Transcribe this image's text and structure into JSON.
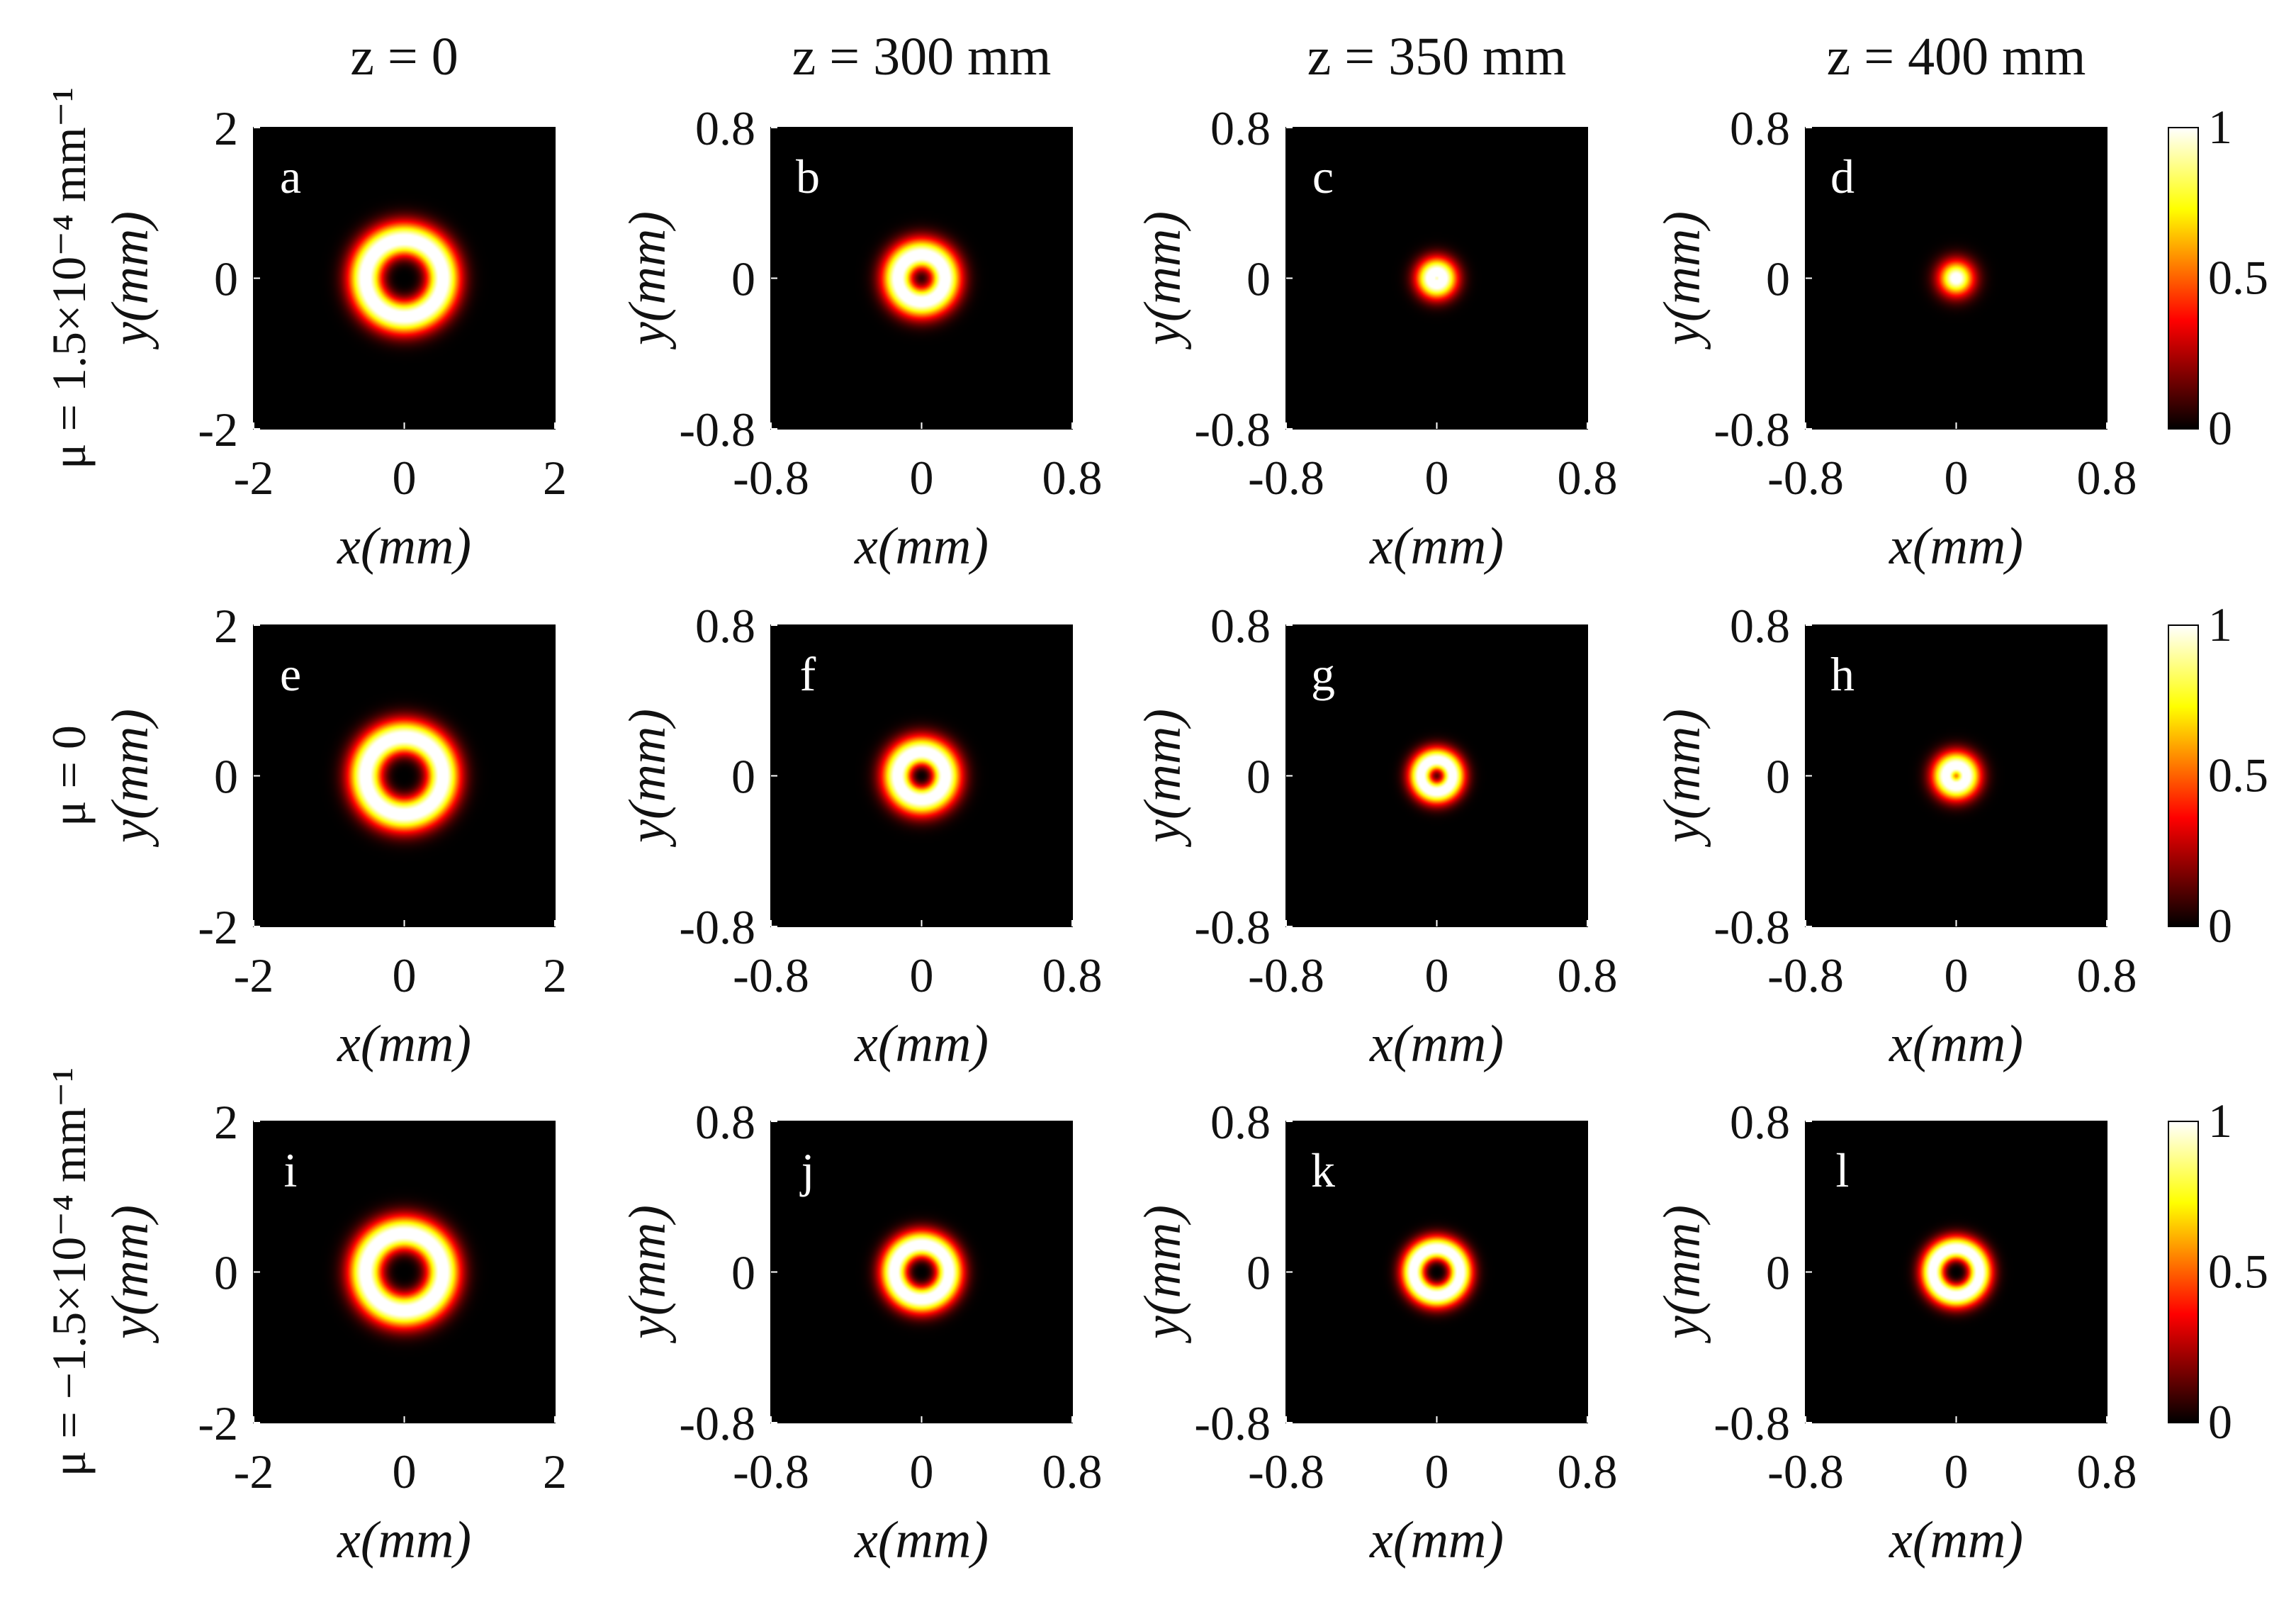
{
  "chart_data": {
    "type": "heatmap",
    "colormap": "hot",
    "columns": [
      {
        "title": "z = 0",
        "xlim": [
          -2,
          2
        ],
        "ylim": [
          -2,
          2
        ],
        "xticks": [
          "-2",
          "0",
          "2"
        ],
        "yticks": [
          "2",
          "0",
          "-2"
        ]
      },
      {
        "title": "z = 300 mm",
        "xlim": [
          -0.8,
          0.8
        ],
        "ylim": [
          -0.8,
          0.8
        ],
        "xticks": [
          "-0.8",
          "0",
          "0.8"
        ],
        "yticks": [
          "0.8",
          "0",
          "-0.8"
        ]
      },
      {
        "title": "z = 350 mm",
        "xlim": [
          -0.8,
          0.8
        ],
        "ylim": [
          -0.8,
          0.8
        ],
        "xticks": [
          "-0.8",
          "0",
          "0.8"
        ],
        "yticks": [
          "0.8",
          "0",
          "-0.8"
        ]
      },
      {
        "title": "z = 400 mm",
        "xlim": [
          -0.8,
          0.8
        ],
        "ylim": [
          -0.8,
          0.8
        ],
        "xticks": [
          "-0.8",
          "0",
          "0.8"
        ],
        "yticks": [
          "0.8",
          "0",
          "-0.8"
        ]
      }
    ],
    "rows": [
      {
        "label": "μ = 1.5×10⁻⁴ mm⁻¹"
      },
      {
        "label": "μ = 0"
      },
      {
        "label": "μ = −1.5×10⁻⁴ mm⁻¹"
      }
    ],
    "xlabel": "x(mm)",
    "ylabel": "y(mm)",
    "colorbar": {
      "ticks": [
        "1",
        "0.5",
        "0"
      ],
      "range": [
        0,
        1
      ]
    },
    "panels": [
      {
        "letter": "a",
        "ring_radius_mm": 0.5,
        "ring_width_mm": 0.24,
        "center_value": 0.0
      },
      {
        "letter": "b",
        "ring_radius_mm": 0.12,
        "ring_width_mm": 0.09,
        "center_value": 0.35
      },
      {
        "letter": "c",
        "ring_radius_mm": 0.03,
        "ring_width_mm": 0.08,
        "center_value": 0.95
      },
      {
        "letter": "d",
        "ring_radius_mm": 0.0,
        "ring_width_mm": 0.09,
        "center_value": 1.0
      },
      {
        "letter": "e",
        "ring_radius_mm": 0.5,
        "ring_width_mm": 0.24,
        "center_value": 0.0
      },
      {
        "letter": "f",
        "ring_radius_mm": 0.12,
        "ring_width_mm": 0.09,
        "center_value": 0.05
      },
      {
        "letter": "g",
        "ring_radius_mm": 0.08,
        "ring_width_mm": 0.07,
        "center_value": 0.4
      },
      {
        "letter": "h",
        "ring_radius_mm": 0.05,
        "ring_width_mm": 0.08,
        "center_value": 0.7
      },
      {
        "letter": "i",
        "ring_radius_mm": 0.5,
        "ring_width_mm": 0.24,
        "center_value": 0.0
      },
      {
        "letter": "j",
        "ring_radius_mm": 0.14,
        "ring_width_mm": 0.08,
        "center_value": 0.0
      },
      {
        "letter": "k",
        "ring_radius_mm": 0.12,
        "ring_width_mm": 0.07,
        "center_value": 0.0
      },
      {
        "letter": "l",
        "ring_radius_mm": 0.12,
        "ring_width_mm": 0.07,
        "center_value": 0.0
      }
    ]
  }
}
